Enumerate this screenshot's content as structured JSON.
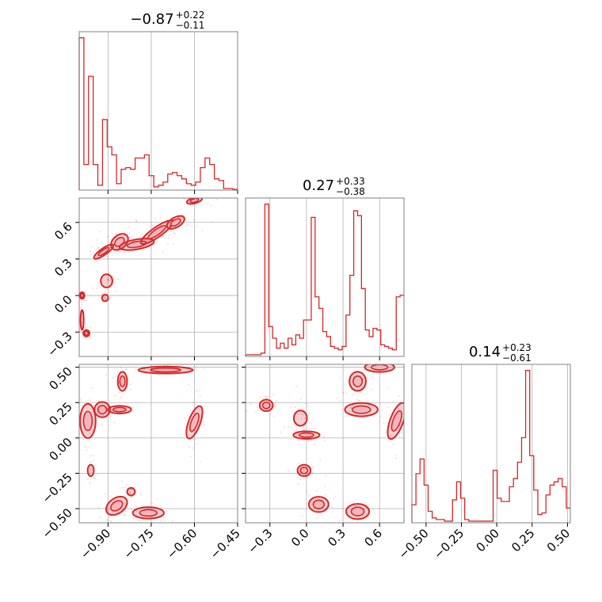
{
  "colors": {
    "accent": "#d62728",
    "light": "#f4b6bd",
    "grid": "#b0b0b0",
    "frame": "#808080"
  },
  "chart_data": {
    "type": "corner",
    "parameters": [
      {
        "title": {
          "median": "−0.87",
          "plus": "+0.22",
          "minus": "−0.11"
        },
        "range": [
          -1.0,
          -0.45
        ],
        "ticks": [
          -0.9,
          -0.75,
          -0.6,
          -0.45
        ],
        "tick_labels": [
          "−0.90",
          "−0.75",
          "−0.60",
          "−0.45"
        ]
      },
      {
        "title": {
          "median": "0.27",
          "plus": "+0.33",
          "minus": "−0.38"
        },
        "range": [
          -0.5,
          0.8
        ],
        "ticks": [
          -0.3,
          0.0,
          0.3,
          0.6
        ],
        "tick_labels": [
          "−0.3",
          "0.0",
          "0.3",
          "0.6"
        ]
      },
      {
        "title": {
          "median": "0.14",
          "plus": "+0.23",
          "minus": "−0.61"
        },
        "range": [
          -0.6,
          0.52
        ],
        "ticks": [
          -0.5,
          -0.25,
          0.0,
          0.25,
          0.5
        ],
        "tick_labels": [
          "−0.50",
          "−0.25",
          "0.00",
          "0.25",
          "0.50"
        ]
      }
    ],
    "histograms": [
      [
        95,
        16,
        71,
        16,
        3,
        44,
        27,
        22,
        4,
        13,
        14,
        13,
        20,
        20,
        22,
        9,
        2,
        3,
        5,
        10,
        11,
        9,
        7,
        4,
        3,
        5,
        14,
        20,
        16,
        7,
        6,
        1,
        1,
        0.5
      ],
      [
        1,
        1,
        1,
        1,
        2,
        92,
        18,
        11,
        5,
        8,
        5,
        11,
        7,
        13,
        11,
        22,
        22,
        84,
        36,
        29,
        15,
        12,
        6,
        5,
        4,
        6,
        25,
        49,
        88,
        85,
        41,
        16,
        12,
        17,
        16,
        7,
        6,
        5,
        4,
        36,
        37
      ],
      [
        11,
        30,
        39,
        23,
        7,
        3,
        2,
        2,
        1,
        1,
        14,
        25,
        15,
        2,
        1,
        1,
        1,
        1,
        1,
        1,
        32,
        15,
        13,
        13,
        22,
        27,
        37,
        52,
        93,
        41,
        20,
        5,
        6,
        17,
        23,
        25,
        27,
        22,
        9
      ]
    ],
    "pairs": [
      {
        "x_param": 0,
        "y_param": 1,
        "clusters": [
          {
            "x": -0.975,
            "y": -0.31,
            "sx": 0.008,
            "sy": 0.02,
            "rot": 0,
            "level": 2
          },
          {
            "x": -0.99,
            "y": 0.0,
            "sx": 0.006,
            "sy": 0.02,
            "rot": 0,
            "level": 2
          },
          {
            "x": -0.99,
            "y": -0.2,
            "sx": 0.004,
            "sy": 0.06,
            "rot": 0,
            "level": 1
          },
          {
            "x": -0.915,
            "y": 0.36,
            "sx": 0.03,
            "sy": 0.02,
            "rot": -35,
            "level": 2
          },
          {
            "x": -0.86,
            "y": 0.44,
            "sx": 0.025,
            "sy": 0.04,
            "rot": -40,
            "level": 2
          },
          {
            "x": -0.905,
            "y": 0.12,
            "sx": 0.015,
            "sy": 0.04,
            "rot": 0,
            "level": 1
          },
          {
            "x": -0.91,
            "y": -0.02,
            "sx": 0.008,
            "sy": 0.02,
            "rot": 0,
            "level": 1
          },
          {
            "x": -0.8,
            "y": 0.42,
            "sx": 0.045,
            "sy": 0.03,
            "rot": -10,
            "level": 2
          },
          {
            "x": -0.73,
            "y": 0.52,
            "sx": 0.05,
            "sy": 0.03,
            "rot": -35,
            "level": 2
          },
          {
            "x": -0.665,
            "y": 0.6,
            "sx": 0.025,
            "sy": 0.03,
            "rot": -30,
            "level": 2
          },
          {
            "x": -0.6,
            "y": 0.78,
            "sx": 0.02,
            "sy": 0.018,
            "rot": -15,
            "level": 2
          }
        ]
      },
      {
        "x_param": 0,
        "y_param": 2,
        "clusters": [
          {
            "x": -0.85,
            "y": 0.4,
            "sx": 0.012,
            "sy": 0.05,
            "rot": 0,
            "level": 2
          },
          {
            "x": -0.7,
            "y": 0.48,
            "sx": 0.07,
            "sy": 0.018,
            "rot": 0,
            "level": 2
          },
          {
            "x": -0.6,
            "y": 0.11,
            "sx": 0.015,
            "sy": 0.09,
            "rot": 20,
            "level": 2
          },
          {
            "x": -0.97,
            "y": 0.12,
            "sx": 0.02,
            "sy": 0.09,
            "rot": 0,
            "level": 2
          },
          {
            "x": -0.92,
            "y": 0.2,
            "sx": 0.02,
            "sy": 0.04,
            "rot": 0,
            "level": 2
          },
          {
            "x": -0.86,
            "y": 0.2,
            "sx": 0.03,
            "sy": 0.02,
            "rot": 0,
            "level": 2
          },
          {
            "x": -0.96,
            "y": -0.23,
            "sx": 0.008,
            "sy": 0.03,
            "rot": 0,
            "level": 1
          },
          {
            "x": -0.87,
            "y": -0.48,
            "sx": 0.03,
            "sy": 0.04,
            "rot": -35,
            "level": 2
          },
          {
            "x": -0.76,
            "y": -0.53,
            "sx": 0.04,
            "sy": 0.03,
            "rot": 0,
            "level": 2
          },
          {
            "x": -0.82,
            "y": -0.38,
            "sx": 0.01,
            "sy": 0.02,
            "rot": 0,
            "level": 1
          }
        ]
      },
      {
        "x_param": 1,
        "y_param": 2,
        "clusters": [
          {
            "x": -0.33,
            "y": 0.23,
            "sx": 0.04,
            "sy": 0.03,
            "rot": 0,
            "level": 2
          },
          {
            "x": 0.0,
            "y": 0.02,
            "sx": 0.08,
            "sy": 0.02,
            "rot": 0,
            "level": 2
          },
          {
            "x": -0.05,
            "y": 0.14,
            "sx": 0.04,
            "sy": 0.04,
            "rot": 0,
            "level": 1
          },
          {
            "x": -0.02,
            "y": -0.23,
            "sx": 0.04,
            "sy": 0.03,
            "rot": 0,
            "level": 2
          },
          {
            "x": 0.1,
            "y": -0.47,
            "sx": 0.06,
            "sy": 0.04,
            "rot": 0,
            "level": 2
          },
          {
            "x": 0.42,
            "y": -0.52,
            "sx": 0.07,
            "sy": 0.04,
            "rot": 0,
            "level": 2
          },
          {
            "x": 0.42,
            "y": 0.4,
            "sx": 0.05,
            "sy": 0.05,
            "rot": 0,
            "level": 2
          },
          {
            "x": 0.6,
            "y": 0.5,
            "sx": 0.09,
            "sy": 0.025,
            "rot": 0,
            "level": 2
          },
          {
            "x": 0.45,
            "y": 0.2,
            "sx": 0.1,
            "sy": 0.035,
            "rot": 0,
            "level": 2
          },
          {
            "x": 0.74,
            "y": 0.12,
            "sx": 0.04,
            "sy": 0.1,
            "rot": 20,
            "level": 2
          }
        ]
      }
    ],
    "grid": true
  }
}
